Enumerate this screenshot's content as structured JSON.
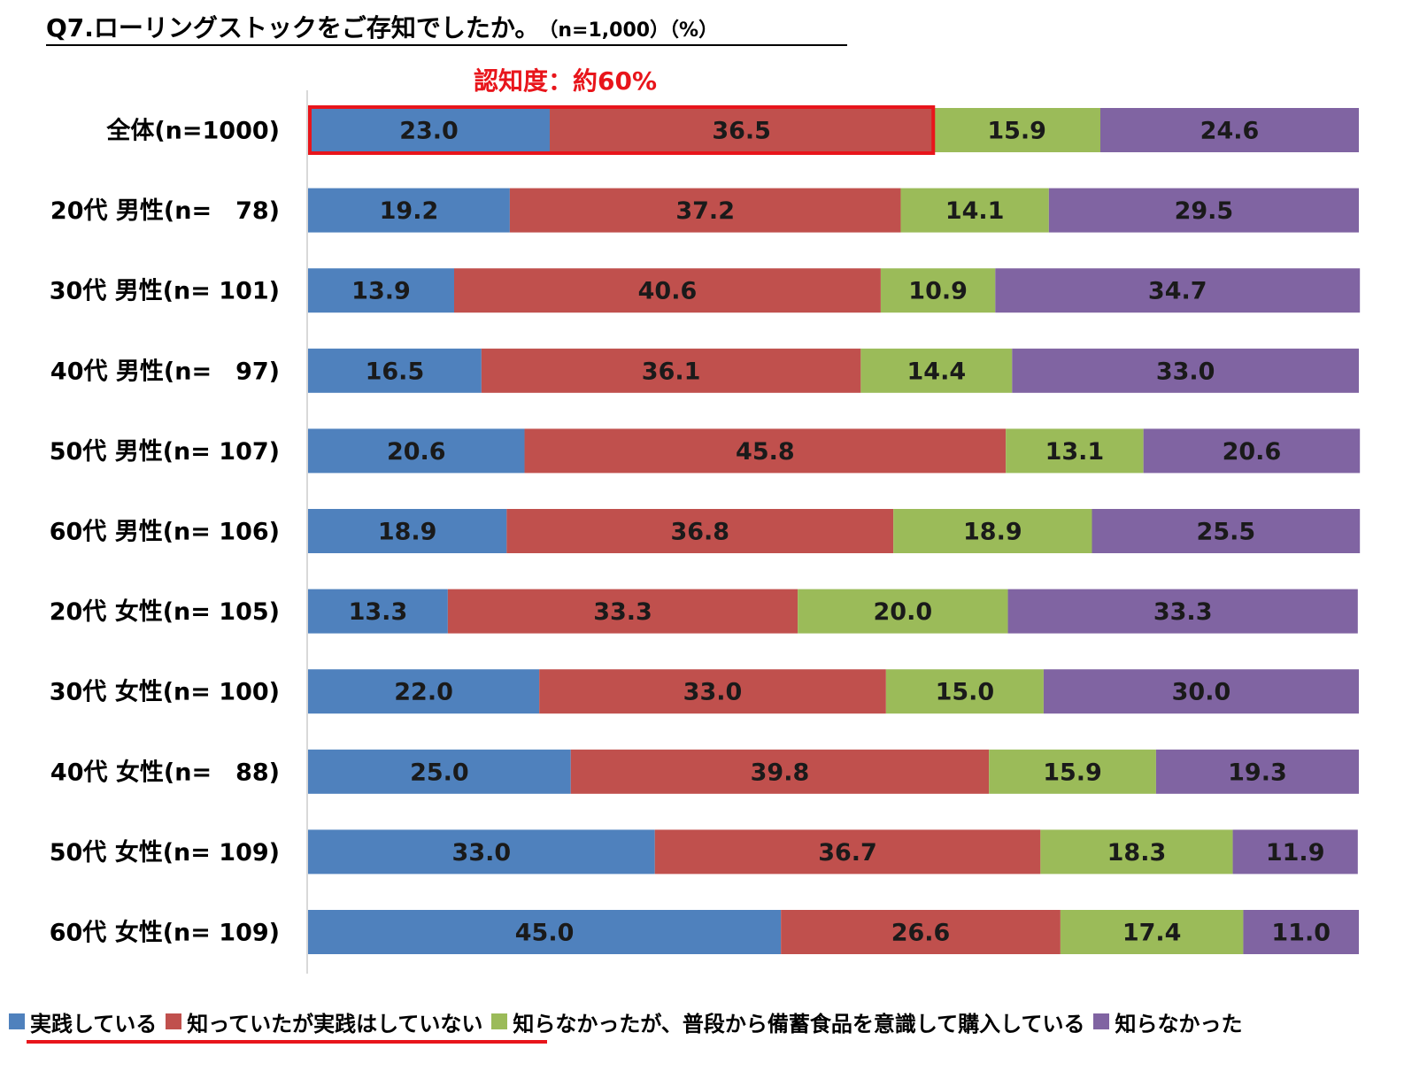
{
  "title": {
    "main": "Q7.ローリングストックをご存知でしたか。",
    "sub": "（n=1,000）（%）"
  },
  "callout": "認知度：約60%",
  "chart_data": {
    "type": "bar",
    "orientation": "horizontal",
    "stacked": true,
    "title": "Q7.ローリングストックをご存知でしたか。（n=1,000）（%）",
    "xlim": [
      0,
      100
    ],
    "categories": [
      "全体(n=1000)",
      "20代 男性(n=　78)",
      "30代 男性(n= 101)",
      "40代 男性(n=　97)",
      "50代 男性(n= 107)",
      "60代 男性(n= 106)",
      "20代 女性(n= 105)",
      "30代 女性(n= 100)",
      "40代 女性(n=　88)",
      "50代 女性(n= 109)",
      "60代 女性(n= 109)"
    ],
    "series": [
      {
        "name": "実践している",
        "color": "#4f81bd",
        "values": [
          23.0,
          19.2,
          13.9,
          16.5,
          20.6,
          18.9,
          13.3,
          22.0,
          25.0,
          33.0,
          45.0
        ]
      },
      {
        "name": "知っていたが実践はしていない",
        "color": "#c0504d",
        "values": [
          36.5,
          37.2,
          40.6,
          36.1,
          45.8,
          36.8,
          33.3,
          33.0,
          39.8,
          36.7,
          26.6
        ]
      },
      {
        "name": "知らなかったが、普段から備蓄食品を意識して購入している",
        "color": "#9bbb59",
        "values": [
          15.9,
          14.1,
          10.9,
          14.4,
          13.1,
          18.9,
          20.0,
          15.0,
          15.9,
          18.3,
          17.4
        ]
      },
      {
        "name": "知らなかった",
        "color": "#8064a2",
        "values": [
          24.6,
          29.5,
          34.7,
          33.0,
          20.6,
          25.5,
          33.3,
          30.0,
          19.3,
          11.9,
          11.0
        ]
      }
    ],
    "highlight": {
      "row": 0,
      "series": [
        0,
        1
      ],
      "color": "#e8151b"
    }
  },
  "legend_underline_color": "#e8151b"
}
